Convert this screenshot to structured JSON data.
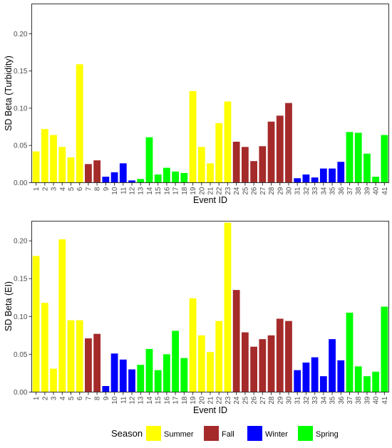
{
  "legend": {
    "title": "Season",
    "items": [
      {
        "label": "Summer",
        "color": "#FFFF00"
      },
      {
        "label": "Fall",
        "color": "#A52A2A"
      },
      {
        "label": "Winter",
        "color": "#0000FF"
      },
      {
        "label": "Spring",
        "color": "#00FF00"
      }
    ]
  },
  "chart_data": [
    {
      "type": "bar",
      "title": "",
      "xlabel": "Event ID",
      "ylabel": "SD Beta (Turbidity)",
      "ylim": [
        0,
        0.24
      ],
      "yticks": [
        "0.00",
        "0.05",
        "0.10",
        "0.15",
        "0.20"
      ],
      "ytick_values": [
        0,
        0.05,
        0.1,
        0.15,
        0.2
      ],
      "categories": [
        "1",
        "2",
        "3",
        "4",
        "5",
        "6",
        "7",
        "8",
        "9",
        "10",
        "11",
        "12",
        "13",
        "14",
        "15",
        "16",
        "17",
        "18",
        "19",
        "20",
        "21",
        "22",
        "23",
        "24",
        "25",
        "26",
        "27",
        "28",
        "29",
        "30",
        "31",
        "32",
        "33",
        "34",
        "35",
        "36",
        "37",
        "38",
        "39",
        "40",
        "41"
      ],
      "seasons": [
        "Summer",
        "Summer",
        "Summer",
        "Summer",
        "Summer",
        "Summer",
        "Fall",
        "Fall",
        "Winter",
        "Winter",
        "Winter",
        "Winter",
        "Spring",
        "Spring",
        "Spring",
        "Spring",
        "Spring",
        "Spring",
        "Summer",
        "Summer",
        "Summer",
        "Summer",
        "Summer",
        "Fall",
        "Fall",
        "Fall",
        "Fall",
        "Fall",
        "Fall",
        "Fall",
        "Winter",
        "Winter",
        "Winter",
        "Winter",
        "Winter",
        "Winter",
        "Spring",
        "Spring",
        "Spring",
        "Spring",
        "Spring"
      ],
      "values": [
        0.042,
        0.072,
        0.064,
        0.048,
        0.034,
        0.159,
        0.025,
        0.03,
        0.008,
        0.014,
        0.026,
        0.003,
        0.005,
        0.061,
        0.011,
        0.02,
        0.015,
        0.013,
        0.123,
        0.048,
        0.026,
        0.08,
        0.109,
        0.055,
        0.048,
        0.029,
        0.049,
        0.082,
        0.09,
        0.107,
        0.006,
        0.011,
        0.007,
        0.019,
        0.019,
        0.028,
        0.068,
        0.067,
        0.039,
        0.008,
        0.064
      ],
      "grid": false
    },
    {
      "type": "bar",
      "title": "",
      "xlabel": "Event ID",
      "ylabel": "SD Beta (EI)",
      "ylim": [
        0,
        0.226
      ],
      "yticks": [
        "0.00",
        "0.05",
        "0.10",
        "0.15",
        "0.20"
      ],
      "ytick_values": [
        0,
        0.05,
        0.1,
        0.15,
        0.2
      ],
      "categories": [
        "1",
        "2",
        "3",
        "4",
        "5",
        "6",
        "7",
        "8",
        "9",
        "10",
        "11",
        "12",
        "13",
        "14",
        "15",
        "16",
        "17",
        "18",
        "19",
        "20",
        "21",
        "22",
        "23",
        "24",
        "25",
        "26",
        "27",
        "28",
        "29",
        "30",
        "31",
        "32",
        "33",
        "34",
        "35",
        "36",
        "37",
        "38",
        "39",
        "40",
        "41"
      ],
      "seasons": [
        "Summer",
        "Summer",
        "Summer",
        "Summer",
        "Summer",
        "Summer",
        "Fall",
        "Fall",
        "Winter",
        "Winter",
        "Winter",
        "Winter",
        "Spring",
        "Spring",
        "Spring",
        "Spring",
        "Spring",
        "Spring",
        "Summer",
        "Summer",
        "Summer",
        "Summer",
        "Summer",
        "Fall",
        "Fall",
        "Fall",
        "Fall",
        "Fall",
        "Fall",
        "Fall",
        "Winter",
        "Winter",
        "Winter",
        "Winter",
        "Winter",
        "Winter",
        "Spring",
        "Spring",
        "Spring",
        "Spring",
        "Spring"
      ],
      "values": [
        0.18,
        0.118,
        0.031,
        0.202,
        0.095,
        0.095,
        0.071,
        0.077,
        0.008,
        0.051,
        0.043,
        0.03,
        0.036,
        0.057,
        0.029,
        0.05,
        0.081,
        0.045,
        0.124,
        0.075,
        0.053,
        0.094,
        0.224,
        0.135,
        0.079,
        0.06,
        0.07,
        0.075,
        0.097,
        0.094,
        0.029,
        0.039,
        0.046,
        0.021,
        0.07,
        0.042,
        0.105,
        0.034,
        0.021,
        0.027,
        0.113
      ],
      "grid": false
    }
  ]
}
